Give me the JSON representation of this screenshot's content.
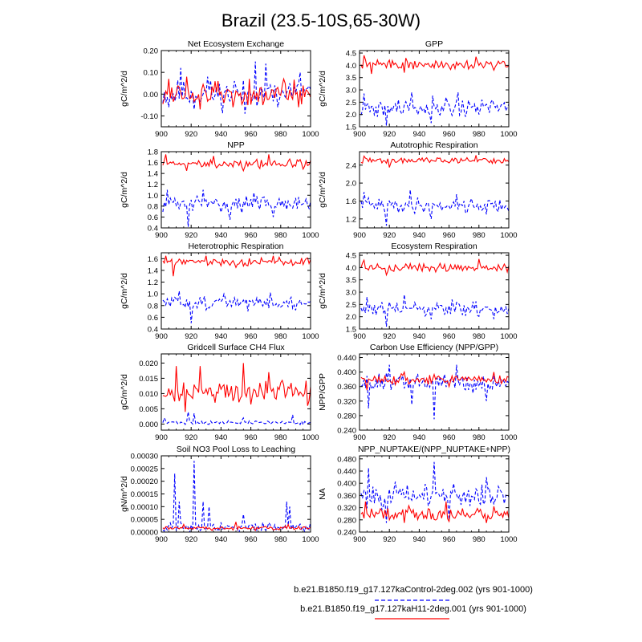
{
  "title": "Brazil (23.5-10S,65-30W)",
  "colors": {
    "control": "#0000ff",
    "experiment": "#ff0000"
  },
  "legend": [
    {
      "label": "b.e21.B1850.f19_g17.127kaControl-2deg.002 (yrs 901-1000)",
      "style": "dashed",
      "color": "#0000ff"
    },
    {
      "label": "b.e21.B1850.f19_g17.127kaH11-2deg.001 (yrs 901-1000)",
      "style": "solid",
      "color": "#ff0000"
    }
  ],
  "chart_data": [
    {
      "type": "line",
      "title": "Net Ecosystem Exchange",
      "ylabel": "gC/m^2/d",
      "xlim": [
        900,
        1000
      ],
      "ylim": [
        -0.15,
        0.2
      ],
      "xticks": [
        900,
        920,
        940,
        960,
        980,
        1000
      ],
      "xtick_labels": [
        "900",
        "920",
        "940",
        "960",
        "980",
        "1000"
      ],
      "yticks": [
        -0.1,
        0.0,
        0.1,
        0.2
      ],
      "ytick_labels": [
        "-0.10",
        "0.00",
        "0.10",
        "0.20"
      ],
      "series": [
        {
          "name": "control",
          "mean": 0.0,
          "amp": 0.06,
          "seed": 11,
          "values": [
            [
              905,
              -0.06
            ],
            [
              913,
              0.12
            ],
            [
              922,
              -0.07
            ],
            [
              931,
              0.08
            ],
            [
              940,
              -0.04
            ],
            [
              949,
              0.06
            ],
            [
              956,
              -0.09
            ],
            [
              963,
              0.15
            ],
            [
              970,
              0.14
            ],
            [
              978,
              -0.06
            ],
            [
              986,
              0.05
            ],
            [
              993,
              0.1
            ]
          ]
        },
        {
          "name": "experiment",
          "mean": 0.0,
          "amp": 0.05,
          "seed": 12,
          "values": [
            [
              905,
              0.07
            ],
            [
              917,
              0.08
            ],
            [
              926,
              -0.07
            ],
            [
              938,
              0.06
            ],
            [
              948,
              -0.06
            ],
            [
              959,
              0.07
            ],
            [
              968,
              -0.05
            ],
            [
              982,
              0.07
            ],
            [
              992,
              -0.06
            ]
          ]
        }
      ]
    },
    {
      "type": "line",
      "title": "GPP",
      "ylabel": "gC/m^2/d",
      "xlim": [
        900,
        1000
      ],
      "ylim": [
        1.5,
        4.6
      ],
      "xticks": [
        900,
        920,
        940,
        960,
        980,
        1000
      ],
      "xtick_labels": [
        "900",
        "920",
        "940",
        "960",
        "980",
        "1000"
      ],
      "yticks": [
        1.5,
        2.0,
        2.5,
        3.0,
        3.5,
        4.0,
        4.5
      ],
      "ytick_labels": [
        "1.5",
        "2.0",
        "2.5",
        "3.0",
        "3.5",
        "4.0",
        "4.5"
      ],
      "series": [
        {
          "name": "control",
          "mean": 2.3,
          "amp": 0.35,
          "seed": 21,
          "values": [
            [
              903,
              2.85
            ],
            [
              910,
              1.95
            ],
            [
              918,
              1.55
            ],
            [
              926,
              2.6
            ],
            [
              935,
              2.9
            ],
            [
              948,
              1.65
            ],
            [
              958,
              2.7
            ],
            [
              966,
              2.9
            ],
            [
              980,
              2.0
            ],
            [
              995,
              2.4
            ]
          ]
        },
        {
          "name": "experiment",
          "mean": 4.05,
          "amp": 0.18,
          "seed": 22,
          "values": [
            [
              903,
              4.4
            ],
            [
              908,
              3.65
            ],
            [
              930,
              3.7
            ],
            [
              950,
              3.9
            ],
            [
              978,
              4.35
            ],
            [
              990,
              3.8
            ]
          ]
        }
      ]
    },
    {
      "type": "line",
      "title": "NPP",
      "ylabel": "gC/m^2/d",
      "xlim": [
        900,
        1000
      ],
      "ylim": [
        0.4,
        1.8
      ],
      "xticks": [
        900,
        920,
        940,
        960,
        980,
        1000
      ],
      "xtick_labels": [
        "900",
        "920",
        "940",
        "960",
        "980",
        "1000"
      ],
      "yticks": [
        0.4,
        0.6,
        0.8,
        1.0,
        1.2,
        1.4,
        1.6,
        1.8
      ],
      "ytick_labels": [
        "0.4",
        "0.6",
        "0.8",
        "1.0",
        "1.2",
        "1.4",
        "1.6",
        "1.8"
      ],
      "series": [
        {
          "name": "control",
          "mean": 0.85,
          "amp": 0.13,
          "seed": 31,
          "values": [
            [
              904,
              1.1
            ],
            [
              918,
              0.42
            ],
            [
              928,
              1.1
            ],
            [
              946,
              0.55
            ],
            [
              962,
              1.05
            ],
            [
              975,
              0.6
            ],
            [
              990,
              0.95
            ]
          ]
        },
        {
          "name": "experiment",
          "mean": 1.58,
          "amp": 0.08,
          "seed": 32,
          "values": [
            [
              903,
              1.75
            ],
            [
              917,
              1.45
            ],
            [
              935,
              1.72
            ],
            [
              955,
              1.45
            ],
            [
              972,
              1.75
            ],
            [
              995,
              1.48
            ]
          ]
        }
      ]
    },
    {
      "type": "line",
      "title": "Autotrophic Respiration",
      "ylabel": "gC/m^2/d",
      "xlim": [
        900,
        1000
      ],
      "ylim": [
        1.0,
        2.7
      ],
      "xticks": [
        900,
        920,
        940,
        960,
        980,
        1000
      ],
      "xtick_labels": [
        "900",
        "920",
        "940",
        "960",
        "980",
        "1000"
      ],
      "yticks": [
        1.2,
        1.6,
        2.0,
        2.4
      ],
      "ytick_labels": [
        "1.2",
        "1.6",
        "2.0",
        "2.4"
      ],
      "series": [
        {
          "name": "control",
          "mean": 1.5,
          "amp": 0.15,
          "seed": 41,
          "values": [
            [
              903,
              1.8
            ],
            [
              918,
              1.05
            ],
            [
              934,
              1.85
            ],
            [
              948,
              1.2
            ],
            [
              965,
              1.75
            ],
            [
              985,
              1.3
            ]
          ]
        },
        {
          "name": "experiment",
          "mean": 2.5,
          "amp": 0.06,
          "seed": 42,
          "values": [
            [
              903,
              2.6
            ],
            [
              920,
              2.35
            ],
            [
              940,
              2.55
            ],
            [
              960,
              2.45
            ],
            [
              978,
              2.62
            ],
            [
              995,
              2.45
            ]
          ]
        }
      ]
    },
    {
      "type": "line",
      "title": "Heterotrophic Respiration",
      "ylabel": "gC/m^2/d",
      "xlim": [
        900,
        1000
      ],
      "ylim": [
        0.4,
        1.7
      ],
      "xticks": [
        900,
        920,
        940,
        960,
        980,
        1000
      ],
      "xtick_labels": [
        "900",
        "920",
        "940",
        "960",
        "980",
        "1000"
      ],
      "yticks": [
        0.4,
        0.6,
        0.8,
        1.0,
        1.2,
        1.4,
        1.6
      ],
      "ytick_labels": [
        "0.4",
        "0.6",
        "0.8",
        "1.0",
        "1.2",
        "1.4",
        "1.6"
      ],
      "series": [
        {
          "name": "control",
          "mean": 0.85,
          "amp": 0.1,
          "seed": 51,
          "values": [
            [
              912,
              1.05
            ],
            [
              920,
              0.5
            ],
            [
              942,
              1.0
            ],
            [
              958,
              0.7
            ],
            [
              973,
              1.02
            ],
            [
              990,
              0.72
            ]
          ]
        },
        {
          "name": "experiment",
          "mean": 1.55,
          "amp": 0.06,
          "seed": 52,
          "values": [
            [
              903,
              1.65
            ],
            [
              908,
              1.3
            ],
            [
              930,
              1.65
            ],
            [
              950,
              1.45
            ],
            [
              975,
              1.65
            ],
            [
              995,
              1.5
            ]
          ]
        }
      ]
    },
    {
      "type": "line",
      "title": "Ecosystem Respiration",
      "ylabel": "gC/m^2/d",
      "xlim": [
        900,
        1000
      ],
      "ylim": [
        1.5,
        4.6
      ],
      "xticks": [
        900,
        920,
        940,
        960,
        980,
        1000
      ],
      "xtick_labels": [
        "900",
        "920",
        "940",
        "960",
        "980",
        "1000"
      ],
      "yticks": [
        1.5,
        2.0,
        2.5,
        3.0,
        3.5,
        4.0,
        4.5
      ],
      "ytick_labels": [
        "1.5",
        "2.0",
        "2.5",
        "3.0",
        "3.5",
        "4.0",
        "4.5"
      ],
      "series": [
        {
          "name": "control",
          "mean": 2.3,
          "amp": 0.3,
          "seed": 61,
          "values": [
            [
              905,
              2.8
            ],
            [
              918,
              1.6
            ],
            [
              930,
              2.9
            ],
            [
              948,
              1.9
            ],
            [
              962,
              2.7
            ],
            [
              990,
              1.9
            ]
          ]
        },
        {
          "name": "experiment",
          "mean": 4.0,
          "amp": 0.15,
          "seed": 62,
          "values": [
            [
              903,
              4.3
            ],
            [
              918,
              3.7
            ],
            [
              940,
              4.15
            ],
            [
              958,
              3.85
            ],
            [
              980,
              4.35
            ],
            [
              995,
              3.9
            ]
          ]
        }
      ]
    },
    {
      "type": "line",
      "title": "Gridcell Surface CH4 Flux",
      "ylabel": "gC/m^2/d",
      "xlim": [
        900,
        1000
      ],
      "ylim": [
        -0.002,
        0.023
      ],
      "xticks": [
        900,
        920,
        940,
        960,
        980,
        1000
      ],
      "xtick_labels": [
        "900",
        "920",
        "940",
        "960",
        "980",
        "1000"
      ],
      "yticks": [
        0.0,
        0.005,
        0.01,
        0.015,
        0.02
      ],
      "ytick_labels": [
        "0.000",
        "0.005",
        "0.010",
        "0.015",
        "0.020"
      ],
      "series": [
        {
          "name": "control",
          "mean": 0.0005,
          "amp": 0.0006,
          "seed": 71,
          "values": [
            [
              902,
              0.002
            ],
            [
              918,
              0.004
            ],
            [
              922,
              0.0035
            ],
            [
              955,
              0.002
            ],
            [
              988,
              0.003
            ]
          ]
        },
        {
          "name": "experiment",
          "mean": 0.0105,
          "amp": 0.0035,
          "seed": 72,
          "values": [
            [
              910,
              0.019
            ],
            [
              916,
              0.004
            ],
            [
              926,
              0.019
            ],
            [
              936,
              0.007
            ],
            [
              955,
              0.02
            ],
            [
              972,
              0.017
            ],
            [
              990,
              0.012
            ],
            [
              998,
              0.006
            ]
          ]
        }
      ]
    },
    {
      "type": "line",
      "title": "Carbon Use Efficiency (NPP/GPP)",
      "ylabel": "NPP/GPP",
      "xlim": [
        900,
        1000
      ],
      "ylim": [
        0.24,
        0.45
      ],
      "xticks": [
        900,
        920,
        940,
        960,
        980,
        1000
      ],
      "xtick_labels": [
        "900",
        "920",
        "940",
        "960",
        "980",
        "1000"
      ],
      "yticks": [
        0.24,
        0.28,
        0.32,
        0.36,
        0.4,
        0.44
      ],
      "ytick_labels": [
        "0.240",
        "0.280",
        "0.320",
        "0.360",
        "0.400",
        "0.440"
      ],
      "series": [
        {
          "name": "control",
          "mean": 0.37,
          "amp": 0.025,
          "seed": 81,
          "values": [
            [
              906,
              0.3
            ],
            [
              920,
              0.42
            ],
            [
              935,
              0.31
            ],
            [
              950,
              0.27
            ],
            [
              965,
              0.42
            ],
            [
              985,
              0.32
            ]
          ]
        },
        {
          "name": "experiment",
          "mean": 0.38,
          "amp": 0.012,
          "seed": 82,
          "values": [
            [
              905,
              0.35
            ],
            [
              930,
              0.4
            ],
            [
              960,
              0.36
            ],
            [
              990,
              0.4
            ]
          ]
        }
      ]
    },
    {
      "type": "line",
      "title": "Soil NO3 Pool Loss to Leaching",
      "ylabel": "gN/m^2/d",
      "xlim": [
        900,
        1000
      ],
      "ylim": [
        0.0,
        0.0003
      ],
      "xticks": [
        900,
        920,
        940,
        960,
        980,
        1000
      ],
      "xtick_labels": [
        "900",
        "920",
        "940",
        "960",
        "980",
        "1000"
      ],
      "yticks": [
        0.0,
        5e-05,
        0.0001,
        0.00015,
        0.0002,
        0.00025,
        0.0003
      ],
      "ytick_labels": [
        "0.00000",
        "0.00005",
        "0.00010",
        "0.00015",
        "0.00020",
        "0.00025",
        "0.00030"
      ],
      "series": [
        {
          "name": "control",
          "mean": 2e-05,
          "amp": 2e-05,
          "seed": 91,
          "values": [
            [
              909,
              0.00023
            ],
            [
              912,
              0.00012
            ],
            [
              922,
              0.00028
            ],
            [
              928,
              0.00012
            ],
            [
              932,
              0.0001
            ],
            [
              955,
              7e-05
            ],
            [
              984,
              0.00012
            ],
            [
              986,
              0.0001
            ]
          ]
        },
        {
          "name": "experiment",
          "mean": 1.5e-05,
          "amp": 8e-06,
          "seed": 92,
          "values": [
            [
              915,
              3e-05
            ],
            [
              950,
              4e-05
            ],
            [
              985,
              3e-05
            ]
          ]
        }
      ]
    },
    {
      "type": "line",
      "title": "NPP_NUPTAKE/(NPP_NUPTAKE+NPP)",
      "ylabel": "NA",
      "xlim": [
        900,
        1000
      ],
      "ylim": [
        0.24,
        0.49
      ],
      "xticks": [
        900,
        920,
        940,
        960,
        980,
        1000
      ],
      "xtick_labels": [
        "900",
        "920",
        "940",
        "960",
        "980",
        "1000"
      ],
      "yticks": [
        0.24,
        0.28,
        0.32,
        0.36,
        0.4,
        0.44,
        0.48
      ],
      "ytick_labels": [
        "0.240",
        "0.280",
        "0.320",
        "0.360",
        "0.400",
        "0.440",
        "0.480"
      ],
      "series": [
        {
          "name": "control",
          "mean": 0.36,
          "amp": 0.035,
          "seed": 101,
          "values": [
            [
              906,
              0.45
            ],
            [
              918,
              0.27
            ],
            [
              950,
              0.47
            ],
            [
              960,
              0.28
            ],
            [
              985,
              0.42
            ]
          ]
        },
        {
          "name": "experiment",
          "mean": 0.3,
          "amp": 0.02,
          "seed": 102,
          "values": [
            [
              904,
              0.34
            ],
            [
              930,
              0.27
            ],
            [
              958,
              0.34
            ],
            [
              985,
              0.27
            ]
          ]
        }
      ]
    }
  ]
}
